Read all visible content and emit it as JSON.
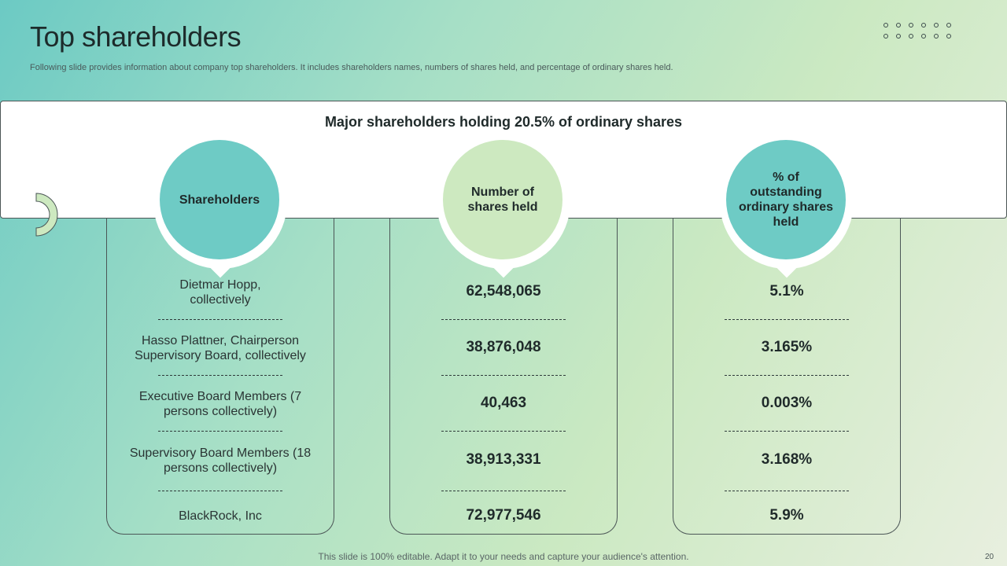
{
  "header": {
    "title": "Top shareholders",
    "subtitle": "Following slide provides information about company top shareholders. It includes shareholders names, numbers of shares held, and percentage of ordinary shares held."
  },
  "band": {
    "title": "Major shareholders holding 20.5% of ordinary shares"
  },
  "columns": [
    {
      "label": "Shareholders"
    },
    {
      "label": "Number of shares held"
    },
    {
      "label": "% of outstanding ordinary shares held"
    }
  ],
  "rows": [
    {
      "name": "Dietmar Hopp, collectively",
      "shares": "62,548,065",
      "percent": "5.1%"
    },
    {
      "name": "Hasso Plattner, Chairperson Supervisory Board, collectively",
      "shares": "38,876,048",
      "percent": "3.165%"
    },
    {
      "name": "Executive Board Members (7 persons collectively)",
      "shares": "40,463",
      "percent": "0.003%"
    },
    {
      "name": "Supervisory Board Members (18 persons collectively)",
      "shares": "38,913,331",
      "percent": "3.168%"
    },
    {
      "name": "BlackRock, Inc",
      "shares": "72,977,546",
      "percent": "5.9%"
    }
  ],
  "footer": {
    "note": "This slide is 100% editable. Adapt it to your needs and capture your audience's attention.",
    "page": "20"
  },
  "colors": {
    "teal": "#6ecbc5",
    "light_green": "#cde9c0"
  }
}
